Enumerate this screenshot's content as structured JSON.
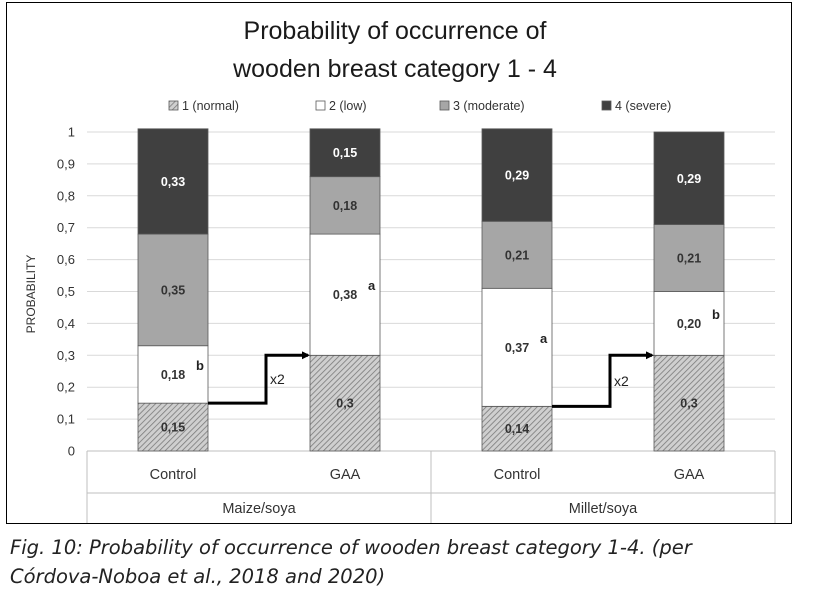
{
  "chart_data": {
    "type": "stacked-bar",
    "title_lines": [
      "Probability of occurrence of",
      "wooden breast category 1 - 4"
    ],
    "ylabel": "PROBABILITY",
    "ylim": [
      0,
      1
    ],
    "yticks": [
      "0",
      "0,1",
      "0,2",
      "0,3",
      "0,4",
      "0,5",
      "0,6",
      "0,7",
      "0,8",
      "0,9",
      "1"
    ],
    "legend": [
      {
        "key": "c1",
        "label": "1 (normal)"
      },
      {
        "key": "c2",
        "label": "2 (low)"
      },
      {
        "key": "c3",
        "label": "3 (moderate)"
      },
      {
        "key": "c4",
        "label": "4 (severe)"
      }
    ],
    "groups": [
      {
        "name": "Maize/soya",
        "categories": [
          "Control",
          "GAA"
        ]
      },
      {
        "name": "Millet/soya",
        "categories": [
          "Control",
          "GAA"
        ]
      }
    ],
    "bars": [
      {
        "group": "Maize/soya",
        "category": "Control",
        "values": [
          0.15,
          0.18,
          0.35,
          0.33
        ],
        "labels": [
          "0,15",
          "0,18",
          "0,35",
          "0,33"
        ],
        "superscripts": [
          "",
          "b",
          "",
          ""
        ]
      },
      {
        "group": "Maize/soya",
        "category": "GAA",
        "values": [
          0.3,
          0.38,
          0.18,
          0.15
        ],
        "labels": [
          "0,3",
          "0,38",
          "0,18",
          "0,15"
        ],
        "superscripts": [
          "",
          "a",
          "",
          ""
        ]
      },
      {
        "group": "Millet/soya",
        "category": "Control",
        "values": [
          0.14,
          0.37,
          0.21,
          0.29
        ],
        "labels": [
          "0,14",
          "0,37",
          "0,21",
          "0,29"
        ],
        "superscripts": [
          "",
          "a",
          "",
          ""
        ]
      },
      {
        "group": "Millet/soya",
        "category": "GAA",
        "values": [
          0.3,
          0.2,
          0.21,
          0.29
        ],
        "labels": [
          "0,3",
          "0,20",
          "0,21",
          "0,29"
        ],
        "superscripts": [
          "",
          "b",
          "",
          ""
        ]
      }
    ],
    "annotations": [
      {
        "type": "arrow",
        "from_bar": 0,
        "to_bar": 1,
        "y_from": 0.15,
        "y_to": 0.3,
        "label": "x2"
      },
      {
        "type": "arrow",
        "from_bar": 2,
        "to_bar": 3,
        "y_from": 0.14,
        "y_to": 0.3,
        "label": "x2"
      }
    ],
    "colors": {
      "c1_fill": "#cfcfcf",
      "c1_hatch": "#7a7a7a",
      "c2_fill": "#ffffff",
      "c3_fill": "#a6a6a6",
      "c4_fill": "#404040",
      "gridline": "#d9d9d9",
      "axis": "#bfbfbf",
      "outline": "#595959"
    }
  },
  "caption": {
    "line1": "Fig. 10: Probability of occurrence of wooden breast category 1-4. (per",
    "line2": "Córdova-Noboa et al., 2018 and 2020)"
  }
}
